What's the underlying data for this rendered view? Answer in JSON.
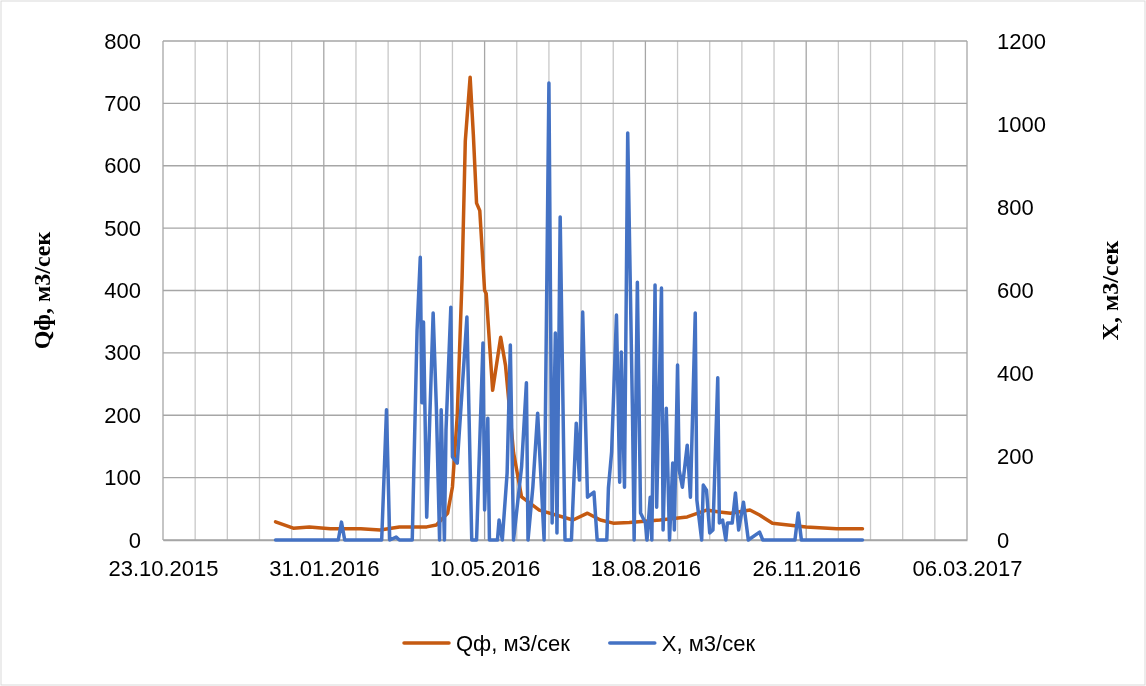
{
  "chart_data": {
    "type": "line",
    "xlabel": null,
    "ylabel": "Qф, м3/сек",
    "y2label": "X, м3/сек",
    "xlim": [
      "2015-10-23",
      "2017-03-06"
    ],
    "xticks": [
      {
        "value": "2015-10-23",
        "label": "23.10.2015"
      },
      {
        "value": "2015-11-12",
        "label": null
      },
      {
        "value": "2015-12-02",
        "label": null
      },
      {
        "value": "2015-12-22",
        "label": null
      },
      {
        "value": "2016-01-11",
        "label": null
      },
      {
        "value": "2016-01-31",
        "label": "31.01.2016"
      },
      {
        "value": "2016-02-20",
        "label": null
      },
      {
        "value": "2016-03-11",
        "label": null
      },
      {
        "value": "2016-03-31",
        "label": null
      },
      {
        "value": "2016-04-20",
        "label": null
      },
      {
        "value": "2016-05-10",
        "label": "10.05.2016"
      },
      {
        "value": "2016-05-30",
        "label": null
      },
      {
        "value": "2016-06-19",
        "label": null
      },
      {
        "value": "2016-07-09",
        "label": null
      },
      {
        "value": "2016-07-29",
        "label": null
      },
      {
        "value": "2016-08-18",
        "label": "18.08.2016"
      },
      {
        "value": "2016-09-07",
        "label": null
      },
      {
        "value": "2016-09-27",
        "label": null
      },
      {
        "value": "2016-10-17",
        "label": null
      },
      {
        "value": "2016-11-06",
        "label": null
      },
      {
        "value": "2016-11-26",
        "label": "26.11.2016"
      },
      {
        "value": "2016-12-16",
        "label": null
      },
      {
        "value": "2017-01-05",
        "label": null
      },
      {
        "value": "2017-01-25",
        "label": null
      },
      {
        "value": "2017-02-14",
        "label": null
      },
      {
        "value": "2017-03-06",
        "label": "06.03.2017"
      }
    ],
    "ylim": [
      0,
      800
    ],
    "yticks": [
      0,
      100,
      200,
      300,
      400,
      500,
      600,
      700,
      800
    ],
    "y2lim": [
      0,
      1200
    ],
    "y2ticks": [
      0,
      200,
      400,
      600,
      800,
      1000,
      1200
    ],
    "grid": true,
    "legend": "bottom",
    "marker": "none",
    "line_style": "solid",
    "series": [
      {
        "name": "Qф, м3/сек",
        "color": "#c55a11",
        "x": [
          "2016-01-01",
          "2016-01-12",
          "2016-01-22",
          "2016-02-04",
          "2016-02-23",
          "2016-03-06",
          "2016-03-18",
          "2016-04-04",
          "2016-04-10",
          "2016-04-17",
          "2016-04-20",
          "2016-04-23",
          "2016-04-26",
          "2016-04-28",
          "2016-05-01",
          "2016-05-03",
          "2016-05-05",
          "2016-05-07",
          "2016-05-10",
          "2016-05-11",
          "2016-05-15",
          "2016-05-20",
          "2016-05-23",
          "2016-05-28",
          "2016-06-02",
          "2016-06-13",
          "2016-07-04",
          "2016-07-13",
          "2016-07-21",
          "2016-07-29",
          "2016-08-08",
          "2016-08-27",
          "2016-09-13",
          "2016-09-25",
          "2016-10-03",
          "2016-10-10",
          "2016-10-22",
          "2016-10-28",
          "2016-11-05",
          "2016-11-26",
          "2016-12-15",
          "2016-12-31"
        ],
        "values": [
          29,
          19,
          21,
          18,
          18,
          16,
          21,
          21,
          24,
          43,
          85,
          200,
          420,
          640,
          742,
          650,
          540,
          528,
          400,
          395,
          240,
          325,
          280,
          140,
          69,
          48,
          32,
          43,
          32,
          27,
          28,
          32,
          37,
          48,
          45,
          43,
          48,
          40,
          27,
          21,
          18,
          18
        ]
      },
      {
        "name": "X, м3/сек",
        "color": "#4472c4",
        "axis": "y2",
        "x": [
          "2016-01-01",
          "2016-02-09",
          "2016-02-11",
          "2016-02-13",
          "2016-03-07",
          "2016-03-10",
          "2016-03-12",
          "2016-03-16",
          "2016-03-18",
          "2016-03-26",
          "2016-03-29",
          "2016-03-31",
          "2016-04-01",
          "2016-04-02",
          "2016-04-04",
          "2016-04-06",
          "2016-04-08",
          "2016-04-10",
          "2016-04-12",
          "2016-04-13",
          "2016-04-15",
          "2016-04-16",
          "2016-04-19",
          "2016-04-20",
          "2016-04-23",
          "2016-04-26",
          "2016-04-29",
          "2016-05-02",
          "2016-05-05",
          "2016-05-09",
          "2016-05-10",
          "2016-05-12",
          "2016-05-13",
          "2016-05-18",
          "2016-05-19",
          "2016-05-21",
          "2016-05-24",
          "2016-05-26",
          "2016-05-28",
          "2016-06-02",
          "2016-06-05",
          "2016-06-06",
          "2016-06-09",
          "2016-06-12",
          "2016-06-16",
          "2016-06-19",
          "2016-06-21",
          "2016-06-23",
          "2016-06-24",
          "2016-06-26",
          "2016-06-29",
          "2016-07-03",
          "2016-07-06",
          "2016-07-08",
          "2016-07-10",
          "2016-07-13",
          "2016-07-17",
          "2016-07-19",
          "2016-07-25",
          "2016-07-26",
          "2016-07-28",
          "2016-07-31",
          "2016-08-02",
          "2016-08-03",
          "2016-08-05",
          "2016-08-07",
          "2016-08-10",
          "2016-08-11",
          "2016-08-13",
          "2016-08-15",
          "2016-08-18",
          "2016-08-19",
          "2016-08-21",
          "2016-08-22",
          "2016-08-24",
          "2016-08-25",
          "2016-08-28",
          "2016-08-29",
          "2016-08-31",
          "2016-09-02",
          "2016-09-04",
          "2016-09-05",
          "2016-09-07",
          "2016-09-08",
          "2016-09-10",
          "2016-09-13",
          "2016-09-15",
          "2016-09-18",
          "2016-09-19",
          "2016-09-22",
          "2016-09-23",
          "2016-09-25",
          "2016-09-27",
          "2016-09-29",
          "2016-10-02",
          "2016-10-03",
          "2016-10-05",
          "2016-10-07",
          "2016-10-08",
          "2016-10-11",
          "2016-10-13",
          "2016-10-15",
          "2016-10-18",
          "2016-10-21",
          "2016-10-28",
          "2016-10-30",
          "2016-11-19",
          "2016-11-21",
          "2016-11-23",
          "2016-12-31"
        ],
        "values": [
          0,
          0,
          43,
          0,
          0,
          313,
          0,
          7,
          0,
          0,
          505,
          680,
          330,
          524,
          55,
          305,
          546,
          320,
          0,
          313,
          0,
          265,
          560,
          200,
          185,
          360,
          536,
          0,
          0,
          474,
          72,
          293,
          0,
          0,
          48,
          0,
          161,
          469,
          0,
          176,
          378,
          0,
          127,
          305,
          0,
          1099,
          41,
          498,
          17,
          777,
          0,
          0,
          281,
          144,
          548,
          103,
          115,
          0,
          0,
          125,
          212,
          541,
          139,
          452,
          127,
          979,
          296,
          0,
          620,
          65,
          41,
          0,
          103,
          0,
          613,
          79,
          606,
          24,
          317,
          0,
          185,
          24,
          421,
          168,
          127,
          228,
          103,
          546,
          96,
          0,
          132,
          120,
          17,
          24,
          390,
          41,
          48,
          0,
          41,
          41,
          113,
          24,
          91,
          0,
          19,
          0,
          0,
          65,
          0,
          0
        ]
      }
    ]
  }
}
